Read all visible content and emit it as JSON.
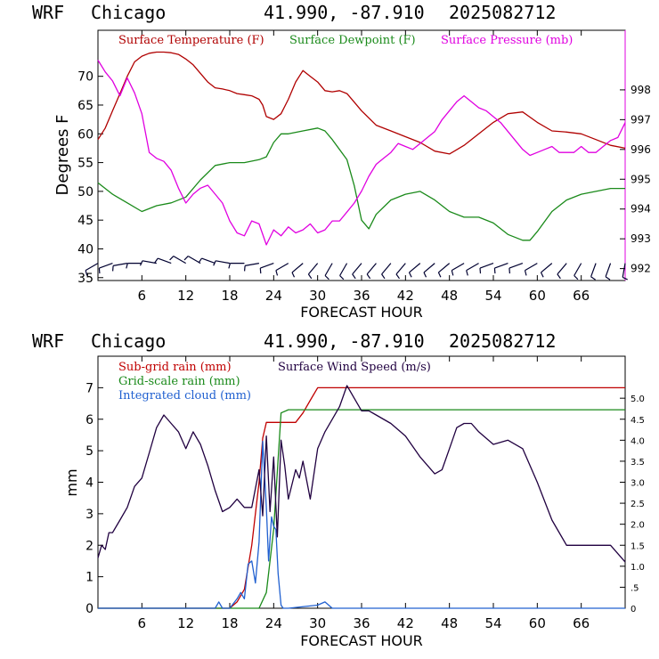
{
  "chart_data": [
    {
      "type": "line",
      "header": {
        "model": "WRF",
        "location": "Chicago",
        "coords": "41.990, -87.910",
        "run": "2025082712"
      },
      "xlabel": "FORECAST HOUR",
      "ylabel": "Degrees F",
      "xlim": [
        0,
        72
      ],
      "ylim": [
        34.5,
        78
      ],
      "ylim_right": [
        991.6,
        1000
      ],
      "x_ticks": [
        6,
        12,
        18,
        24,
        30,
        36,
        42,
        48,
        54,
        60,
        66
      ],
      "y_ticks": [
        35,
        40,
        45,
        50,
        55,
        60,
        65,
        70
      ],
      "y_ticks_right": [
        992,
        993,
        994,
        995,
        996,
        997,
        998
      ],
      "grid": false,
      "legend_placement": "top",
      "colors": {
        "temperature": "#b00000",
        "dewpoint": "#1a8a1a",
        "pressure": "#e000e0",
        "wind": "#000030"
      },
      "series": [
        {
          "name": "Surface Temperature (F)",
          "axis": "left",
          "x": [
            0,
            1,
            2,
            3,
            4,
            5,
            6,
            7,
            8,
            9,
            10,
            11,
            12,
            13,
            14,
            15,
            16,
            17,
            18,
            19,
            20,
            21,
            22,
            22.5,
            23,
            24,
            25,
            26,
            27,
            28,
            29,
            30,
            31,
            32,
            33,
            34,
            35,
            36,
            38,
            40,
            42,
            44,
            46,
            48,
            50,
            52,
            54,
            56,
            58,
            60,
            62,
            64,
            66,
            68,
            70,
            72
          ],
          "values": [
            59,
            61,
            64,
            67,
            70,
            72.5,
            73.5,
            74,
            74.2,
            74.2,
            74.1,
            73.8,
            73,
            72,
            70.5,
            69,
            68,
            67.8,
            67.5,
            67,
            66.8,
            66.6,
            66,
            65,
            63,
            62.5,
            63.5,
            66,
            69,
            71,
            70,
            69,
            67.5,
            67.3,
            67.5,
            67,
            65.5,
            64,
            61.5,
            60.5,
            59.5,
            58.5,
            57,
            56.5,
            58,
            60,
            62,
            63.5,
            63.8,
            62,
            60.5,
            60.3,
            60,
            59,
            58,
            57.5
          ]
        },
        {
          "name": "Surface Dewpoint (F)",
          "axis": "left",
          "x": [
            0,
            2,
            4,
            6,
            8,
            10,
            12,
            14,
            16,
            18,
            20,
            22,
            23,
            24,
            25,
            26,
            28,
            30,
            31,
            32,
            34,
            35,
            36,
            37,
            38,
            40,
            42,
            44,
            46,
            48,
            50,
            52,
            54,
            56,
            58,
            59,
            60,
            62,
            64,
            66,
            68,
            70,
            72
          ],
          "values": [
            51.5,
            49.5,
            48,
            46.5,
            47.5,
            48,
            49,
            52,
            54.5,
            55,
            55,
            55.5,
            56,
            58.5,
            60,
            60,
            60.5,
            61,
            60.5,
            59,
            55.5,
            51,
            45,
            43.5,
            46,
            48.5,
            49.5,
            50,
            48.5,
            46.5,
            45.5,
            45.5,
            44.5,
            42.5,
            41.5,
            41.5,
            43,
            46.5,
            48.5,
            49.5,
            50,
            50.5,
            50.5
          ]
        },
        {
          "name": "Surface Pressure (mb)",
          "axis": "right",
          "x": [
            0,
            1,
            2,
            3,
            4,
            5,
            6,
            7,
            8,
            9,
            10,
            11,
            12,
            13,
            14,
            15,
            16,
            17,
            18,
            19,
            20,
            21,
            22,
            23,
            24,
            25,
            26,
            27,
            28,
            29,
            30,
            31,
            32,
            33,
            34,
            35,
            36,
            37,
            38,
            39,
            40,
            41,
            42,
            43,
            44,
            45,
            46,
            47,
            48,
            49,
            50,
            51,
            52,
            53,
            54,
            55,
            56,
            57,
            58,
            59,
            60,
            61,
            62,
            63,
            64,
            65,
            66,
            67,
            68,
            69,
            70,
            71,
            72
          ],
          "values": [
            999,
            998.6,
            998.3,
            997.8,
            998.4,
            997.9,
            997.2,
            995.9,
            995.7,
            995.6,
            995.3,
            994.7,
            994.2,
            994.5,
            994.7,
            994.8,
            994.5,
            994.2,
            993.6,
            993.2,
            993.1,
            993.6,
            993.5,
            992.8,
            993.3,
            993.1,
            993.4,
            993.2,
            993.3,
            993.5,
            993.2,
            993.3,
            993.6,
            993.6,
            993.9,
            994.2,
            994.6,
            995.1,
            995.5,
            995.7,
            995.9,
            996.2,
            996.1,
            996,
            996.2,
            996.4,
            996.6,
            997,
            997.3,
            997.6,
            997.8,
            997.6,
            997.4,
            997.3,
            997.1,
            996.9,
            996.6,
            996.3,
            996,
            995.8,
            995.9,
            996,
            996.1,
            995.9,
            995.9,
            995.9,
            996.1,
            995.9,
            995.9,
            996.1,
            996.3,
            996.4,
            996.9
          ]
        }
      ],
      "wind_barbs": {
        "row_value": 37.5,
        "x": [
          0,
          2,
          4,
          6,
          8,
          10,
          12,
          14,
          16,
          18,
          20,
          22,
          24,
          26,
          28,
          30,
          32,
          34,
          36,
          38,
          40,
          42,
          44,
          46,
          48,
          50,
          52,
          54,
          56,
          58,
          60,
          62,
          64,
          66,
          68,
          70,
          72
        ],
        "direction_deg": [
          240,
          250,
          260,
          270,
          280,
          290,
          300,
          300,
          290,
          280,
          270,
          260,
          250,
          240,
          230,
          220,
          210,
          210,
          220,
          220,
          220,
          220,
          230,
          230,
          230,
          240,
          240,
          250,
          250,
          250,
          240,
          230,
          220,
          210,
          200,
          200,
          190
        ]
      }
    },
    {
      "type": "line",
      "header": {
        "model": "WRF",
        "location": "Chicago",
        "coords": "41.990, -87.910",
        "run": "2025082712"
      },
      "xlabel": "FORECAST HOUR",
      "ylabel": "mm",
      "xlim": [
        0,
        72
      ],
      "ylim": [
        0,
        8
      ],
      "ylim_right": [
        0,
        6
      ],
      "x_ticks": [
        6,
        12,
        18,
        24,
        30,
        36,
        42,
        48,
        54,
        60,
        66
      ],
      "y_ticks": [
        0,
        1,
        2,
        3,
        4,
        5,
        6,
        7
      ],
      "y_ticks_right": [
        0,
        0.5,
        1,
        1.5,
        2,
        2.5,
        3,
        3.5,
        4,
        4.5,
        5
      ],
      "y_tick_labels_right": [
        "0",
        ".5",
        "1.0",
        "1.5",
        "2.0",
        "2.5",
        "3.0",
        "3.5",
        "4.0",
        "4.5",
        "5.0"
      ],
      "grid": false,
      "legend_placement": "top-left",
      "colors": {
        "subgrid": "#c00000",
        "gridscale": "#1a8a1a",
        "cloud": "#2060d0",
        "wind": "#200040"
      },
      "series": [
        {
          "name": "Sub-grid rain (mm)",
          "axis": "left",
          "x": [
            0,
            18,
            19,
            20,
            21,
            22,
            22.5,
            23,
            23.5,
            25,
            27,
            28,
            29,
            30,
            72
          ],
          "values": [
            0,
            0,
            0.2,
            0.6,
            2,
            4,
            5.4,
            5.9,
            5.9,
            5.9,
            5.9,
            6.2,
            6.6,
            7,
            7
          ]
        },
        {
          "name": "Grid-scale rain (mm)",
          "axis": "left",
          "x": [
            0,
            22,
            23,
            24,
            25,
            26,
            72
          ],
          "values": [
            0,
            0,
            0.5,
            2.5,
            6.2,
            6.3,
            6.3
          ]
        },
        {
          "name": "Integrated cloud (mm)",
          "axis": "left",
          "x": [
            0,
            16,
            16.5,
            17,
            18,
            19,
            19.5,
            20,
            20.5,
            21,
            21.5,
            22,
            22.5,
            23,
            23.3,
            23.7,
            24,
            24.3,
            24.6,
            25,
            25.3,
            26,
            30,
            31,
            32,
            72
          ],
          "values": [
            0,
            0,
            0.2,
            0,
            0,
            0.3,
            0.5,
            0.3,
            1.4,
            1.5,
            0.8,
            2.1,
            5.3,
            3.2,
            1.5,
            2.9,
            2.6,
            2.5,
            1.1,
            0.1,
            0,
            0,
            0.1,
            0.2,
            0,
            0
          ]
        },
        {
          "name": "Surface Wind Speed (m/s)",
          "axis": "right",
          "x": [
            0,
            0.5,
            1,
            1.5,
            2,
            3,
            4,
            5,
            6,
            7,
            8,
            9,
            10,
            11,
            12,
            13,
            14,
            15,
            16,
            17,
            18,
            19,
            20,
            21,
            22,
            22.5,
            23,
            23.5,
            24,
            24.5,
            25,
            25.5,
            26,
            27,
            27.5,
            28,
            29,
            30,
            31,
            32,
            33,
            34,
            35,
            36,
            37,
            38,
            40,
            42,
            44,
            46,
            47,
            48,
            49,
            50,
            51,
            52,
            54,
            56,
            58,
            60,
            62,
            64,
            66,
            68,
            70,
            72
          ],
          "values": [
            1.2,
            1.5,
            1.4,
            1.8,
            1.8,
            2.1,
            2.4,
            2.9,
            3.1,
            3.7,
            4.3,
            4.6,
            4.4,
            4.2,
            3.8,
            4.2,
            3.9,
            3.4,
            2.8,
            2.3,
            2.4,
            2.6,
            2.4,
            2.4,
            3.3,
            2.2,
            4.1,
            2.3,
            3.6,
            1.7,
            4.0,
            3.4,
            2.6,
            3.3,
            3.1,
            3.5,
            2.6,
            3.8,
            4.2,
            4.5,
            4.8,
            5.3,
            5.0,
            4.7,
            4.7,
            4.6,
            4.4,
            4.1,
            3.6,
            3.2,
            3.3,
            3.8,
            4.3,
            4.4,
            4.4,
            4.2,
            3.9,
            4.0,
            3.8,
            3.0,
            2.1,
            1.5,
            1.5,
            1.5,
            1.5,
            1.1
          ]
        }
      ]
    }
  ]
}
